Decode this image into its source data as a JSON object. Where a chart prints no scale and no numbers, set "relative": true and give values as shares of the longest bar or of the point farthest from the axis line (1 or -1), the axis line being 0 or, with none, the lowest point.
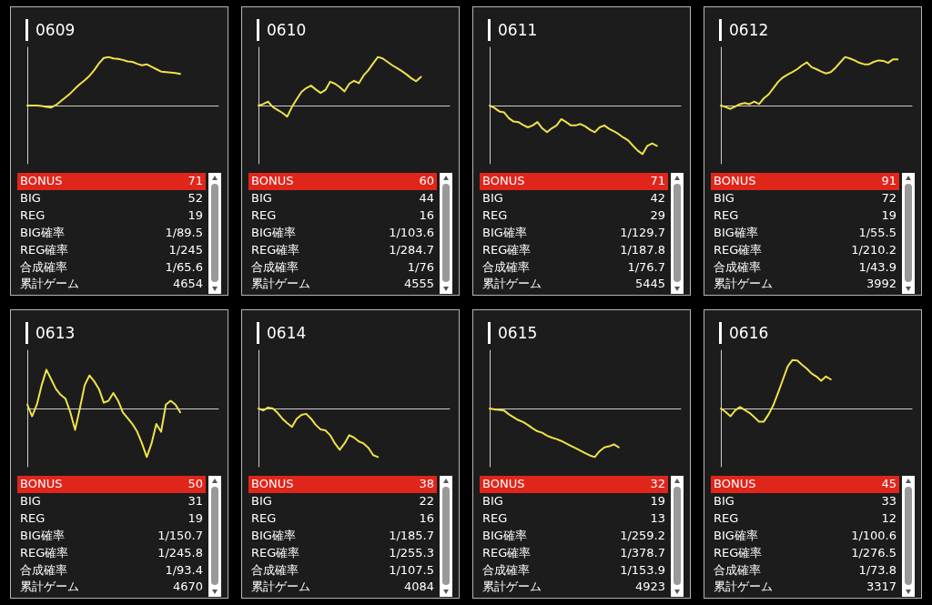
{
  "chart_data": [
    {
      "type": "line",
      "title": "0609",
      "relative": true,
      "color": "#eee24a",
      "categories": [
        null,
        null,
        null,
        null,
        null,
        null,
        null,
        null,
        null,
        null,
        null,
        null,
        null,
        null,
        null,
        null,
        null,
        null,
        null,
        null,
        null,
        null,
        null,
        null,
        null,
        null,
        null,
        null,
        null,
        null,
        null,
        null,
        null,
        null,
        null,
        null,
        null,
        null,
        null,
        null,
        null
      ],
      "values": [
        0,
        0,
        0,
        -0.01,
        -0.03,
        -0.04,
        0.01,
        0.09,
        0.17,
        0.25,
        0.35,
        0.44,
        0.52,
        0.61,
        0.73,
        0.87,
        0.98,
        1,
        0.97,
        0.96,
        0.94,
        0.91,
        0.9,
        0.86,
        0.83,
        0.85,
        0.8,
        0.75,
        0.7,
        0.69,
        0.68,
        0.67,
        0.65,
        null,
        null,
        null,
        null,
        null,
        null,
        null,
        null
      ]
    },
    {
      "type": "other",
      "categories": [
        "BONUS",
        "BIG",
        "REG",
        "BIG確率",
        "REG確率",
        "合成確率",
        "累計ゲーム"
      ],
      "value_labels": [
        "71",
        "52",
        "19",
        "1/89.5",
        "1/245",
        "1/65.6",
        "4654"
      ],
      "colors": [
        "#e0251b",
        null,
        null,
        null,
        null,
        null,
        null
      ]
    },
    {
      "type": "line",
      "title": "0610",
      "relative": true,
      "color": "#eee24a",
      "categories": [
        null,
        null,
        null,
        null,
        null,
        null,
        null,
        null,
        null,
        null,
        null,
        null,
        null,
        null,
        null,
        null,
        null,
        null,
        null,
        null,
        null,
        null,
        null,
        null,
        null,
        null,
        null,
        null,
        null,
        null,
        null,
        null,
        null,
        null,
        null,
        null,
        null,
        null,
        null,
        null,
        null
      ],
      "values": [
        0,
        0.03,
        0.08,
        -0.03,
        -0.09,
        -0.15,
        -0.23,
        -0.03,
        0.13,
        0.28,
        0.36,
        0.41,
        0.33,
        0.26,
        0.32,
        0.49,
        0.45,
        0.38,
        0.29,
        0.45,
        0.51,
        0.46,
        0.62,
        0.73,
        0.87,
        1,
        0.97,
        0.9,
        0.83,
        0.77,
        0.71,
        0.64,
        0.56,
        0.5,
        0.59,
        null,
        null,
        null,
        null,
        null,
        null
      ]
    },
    {
      "type": "other",
      "categories": [
        "BONUS",
        "BIG",
        "REG",
        "BIG確率",
        "REG確率",
        "合成確率",
        "累計ゲーム"
      ],
      "value_labels": [
        "60",
        "44",
        "16",
        "1/103.6",
        "1/284.7",
        "1/76",
        "4555"
      ],
      "colors": [
        "#e0251b",
        null,
        null,
        null,
        null,
        null,
        null
      ]
    },
    {
      "type": "line",
      "title": "0611",
      "relative": true,
      "color": "#eee24a",
      "categories": [
        null,
        null,
        null,
        null,
        null,
        null,
        null,
        null,
        null,
        null,
        null,
        null,
        null,
        null,
        null,
        null,
        null,
        null,
        null,
        null,
        null,
        null,
        null,
        null,
        null,
        null,
        null,
        null,
        null,
        null,
        null,
        null,
        null,
        null,
        null,
        null,
        null,
        null,
        null,
        null,
        null
      ],
      "values": [
        0,
        -0.05,
        -0.12,
        -0.14,
        -0.26,
        -0.33,
        -0.34,
        -0.4,
        -0.45,
        -0.41,
        -0.34,
        -0.47,
        -0.55,
        -0.47,
        -0.41,
        -0.28,
        -0.34,
        -0.41,
        -0.41,
        -0.38,
        -0.43,
        -0.5,
        -0.55,
        -0.45,
        -0.41,
        -0.48,
        -0.53,
        -0.59,
        -0.66,
        -0.72,
        -0.83,
        -0.93,
        -1,
        -0.83,
        -0.78,
        -0.83,
        null,
        null,
        null,
        null,
        null
      ]
    },
    {
      "type": "other",
      "categories": [
        "BONUS",
        "BIG",
        "REG",
        "BIG確率",
        "REG確率",
        "合成確率",
        "累計ゲーム"
      ],
      "value_labels": [
        "71",
        "42",
        "29",
        "1/129.7",
        "1/187.8",
        "1/76.7",
        "5445"
      ],
      "colors": [
        "#e0251b",
        null,
        null,
        null,
        null,
        null,
        null
      ]
    },
    {
      "type": "line",
      "title": "0612",
      "relative": true,
      "color": "#eee24a",
      "categories": [
        null,
        null,
        null,
        null,
        null,
        null,
        null,
        null,
        null,
        null,
        null,
        null,
        null,
        null,
        null,
        null,
        null,
        null,
        null,
        null,
        null,
        null,
        null,
        null,
        null,
        null,
        null,
        null,
        null,
        null,
        null,
        null,
        null,
        null,
        null,
        null,
        null,
        null,
        null,
        null,
        null
      ],
      "values": [
        0,
        -0.03,
        -0.07,
        -0.02,
        0.03,
        0.05,
        0.03,
        0.08,
        0.03,
        0.15,
        0.23,
        0.36,
        0.49,
        0.58,
        0.64,
        0.69,
        0.75,
        0.83,
        0.89,
        0.79,
        0.75,
        0.7,
        0.66,
        0.69,
        0.78,
        0.89,
        1,
        0.97,
        0.93,
        0.88,
        0.85,
        0.85,
        0.9,
        0.93,
        0.92,
        0.88,
        0.95,
        0.95,
        null,
        null,
        null
      ]
    },
    {
      "type": "other",
      "categories": [
        "BONUS",
        "BIG",
        "REG",
        "BIG確率",
        "REG確率",
        "合成確率",
        "累計ゲーム"
      ],
      "value_labels": [
        "91",
        "72",
        "19",
        "1/55.5",
        "1/210.2",
        "1/43.9",
        "3992"
      ],
      "colors": [
        "#e0251b",
        null,
        null,
        null,
        null,
        null,
        null
      ]
    },
    {
      "type": "line",
      "title": "0613",
      "relative": true,
      "color": "#eee24a",
      "categories": [
        null,
        null,
        null,
        null,
        null,
        null,
        null,
        null,
        null,
        null,
        null,
        null,
        null,
        null,
        null,
        null,
        null,
        null,
        null,
        null,
        null,
        null,
        null,
        null,
        null,
        null,
        null,
        null,
        null,
        null,
        null,
        null,
        null,
        null,
        null,
        null,
        null,
        null,
        null,
        null,
        null
      ],
      "values": [
        0.08,
        -0.16,
        0.08,
        0.48,
        0.8,
        0.6,
        0.4,
        0.28,
        0.2,
        -0.08,
        -0.44,
        0,
        0.48,
        0.68,
        0.56,
        0.4,
        0.12,
        0.16,
        0.32,
        0.16,
        -0.08,
        -0.2,
        -0.32,
        -0.48,
        -0.72,
        -1,
        -0.72,
        -0.32,
        -0.48,
        0.08,
        0.16,
        0.08,
        -0.08,
        null,
        null,
        null,
        null,
        null,
        null,
        null,
        null
      ]
    },
    {
      "type": "other",
      "categories": [
        "BONUS",
        "BIG",
        "REG",
        "BIG確率",
        "REG確率",
        "合成確率",
        "累計ゲーム"
      ],
      "value_labels": [
        "50",
        "31",
        "19",
        "1/150.7",
        "1/245.8",
        "1/93.4",
        "4670"
      ],
      "colors": [
        "#e0251b",
        null,
        null,
        null,
        null,
        null,
        null
      ]
    },
    {
      "type": "line",
      "title": "0614",
      "relative": true,
      "color": "#eee24a",
      "categories": [
        null,
        null,
        null,
        null,
        null,
        null,
        null,
        null,
        null,
        null,
        null,
        null,
        null,
        null,
        null,
        null,
        null,
        null,
        null,
        null,
        null,
        null,
        null,
        null,
        null,
        null,
        null,
        null,
        null,
        null,
        null,
        null,
        null,
        null,
        null,
        null,
        null,
        null,
        null,
        null,
        null
      ],
      "values": [
        0,
        -0.04,
        0.02,
        0,
        -0.09,
        -0.21,
        -0.3,
        -0.38,
        -0.21,
        -0.13,
        -0.11,
        -0.21,
        -0.34,
        -0.43,
        -0.45,
        -0.55,
        -0.72,
        -0.85,
        -0.72,
        -0.55,
        -0.6,
        -0.68,
        -0.72,
        -0.81,
        -0.96,
        -1,
        null,
        null,
        null,
        null,
        null,
        null,
        null,
        null,
        null,
        null,
        null,
        null,
        null,
        null,
        null
      ]
    },
    {
      "type": "other",
      "categories": [
        "BONUS",
        "BIG",
        "REG",
        "BIG確率",
        "REG確率",
        "合成確率",
        "累計ゲーム"
      ],
      "value_labels": [
        "38",
        "22",
        "16",
        "1/185.7",
        "1/255.3",
        "1/107.5",
        "4084"
      ],
      "colors": [
        "#e0251b",
        null,
        null,
        null,
        null,
        null,
        null
      ]
    },
    {
      "type": "line",
      "title": "0615",
      "relative": true,
      "color": "#eee24a",
      "categories": [
        null,
        null,
        null,
        null,
        null,
        null,
        null,
        null,
        null,
        null,
        null,
        null,
        null,
        null,
        null,
        null,
        null,
        null,
        null,
        null,
        null,
        null,
        null,
        null,
        null,
        null,
        null,
        null,
        null,
        null,
        null,
        null,
        null,
        null,
        null,
        null,
        null,
        null,
        null,
        null,
        null
      ],
      "values": [
        0,
        -0.02,
        -0.03,
        -0.04,
        -0.12,
        -0.18,
        -0.24,
        -0.28,
        -0.34,
        -0.41,
        -0.47,
        -0.5,
        -0.56,
        -0.6,
        -0.63,
        -0.67,
        -0.72,
        -0.77,
        -0.82,
        -0.87,
        -0.92,
        -0.97,
        -1,
        -0.88,
        -0.8,
        -0.78,
        -0.74,
        -0.8,
        null,
        null,
        null,
        null,
        null,
        null,
        null,
        null,
        null,
        null,
        null,
        null,
        null
      ]
    },
    {
      "type": "other",
      "categories": [
        "BONUS",
        "BIG",
        "REG",
        "BIG確率",
        "REG確率",
        "合成確率",
        "累計ゲーム"
      ],
      "value_labels": [
        "32",
        "19",
        "13",
        "1/259.2",
        "1/378.7",
        "1/153.9",
        "4923"
      ],
      "colors": [
        "#e0251b",
        null,
        null,
        null,
        null,
        null,
        null
      ]
    },
    {
      "type": "line",
      "title": "0616",
      "relative": true,
      "color": "#eee24a",
      "categories": [
        null,
        null,
        null,
        null,
        null,
        null,
        null,
        null,
        null,
        null,
        null,
        null,
        null,
        null,
        null,
        null,
        null,
        null,
        null,
        null,
        null,
        null,
        null,
        null,
        null,
        null,
        null,
        null,
        null,
        null,
        null,
        null,
        null,
        null,
        null,
        null,
        null,
        null,
        null,
        null,
        null
      ],
      "values": [
        0,
        -0.07,
        -0.16,
        -0.04,
        0.03,
        -0.03,
        -0.09,
        -0.18,
        -0.27,
        -0.27,
        -0.12,
        0.07,
        0.33,
        0.6,
        0.87,
        1,
        0.99,
        0.9,
        0.82,
        0.72,
        0.66,
        0.57,
        0.66,
        0.6,
        null,
        null,
        null,
        null,
        null,
        null,
        null,
        null,
        null,
        null,
        null,
        null,
        null,
        null,
        null,
        null,
        null
      ]
    },
    {
      "type": "other",
      "categories": [
        "BONUS",
        "BIG",
        "REG",
        "BIG確率",
        "REG確率",
        "合成確率",
        "累計ゲーム"
      ],
      "value_labels": [
        "45",
        "33",
        "12",
        "1/100.6",
        "1/276.5",
        "1/73.8",
        "3317"
      ],
      "colors": [
        "#e0251b",
        null,
        null,
        null,
        null,
        null,
        null
      ]
    }
  ]
}
